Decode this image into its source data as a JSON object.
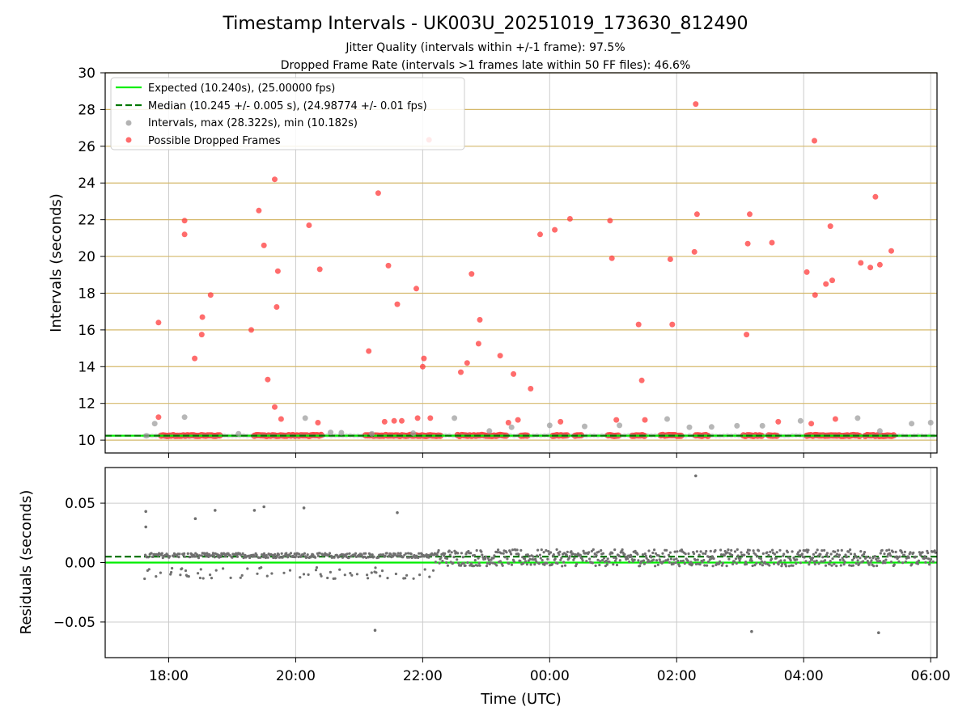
{
  "title": "Timestamp Intervals - UK003U_20251019_173630_812490",
  "subtitle_1": "Jitter Quality (intervals within +/-1 frame): 97.5%",
  "subtitle_2": "Dropped Frame Rate (intervals >1 frames late within 50 FF files): 46.6%",
  "colors": {
    "expected": "#00ee00",
    "median": "#007700",
    "intervals": "#999999",
    "dropped": "#ff3b3b",
    "residuals": "#707070",
    "hline": "#d4b86a",
    "grid": "#cccccc"
  },
  "chart_data": [
    {
      "type": "scatter",
      "name": "intervals",
      "xlabel": "Time (UTC)",
      "ylabel": "Intervals (seconds)",
      "xlim_hours": [
        17.0,
        30.1
      ],
      "ylim": [
        9.3,
        30
      ],
      "x_ticks": [
        {
          "h": 18,
          "label": "18:00"
        },
        {
          "h": 20,
          "label": "20:00"
        },
        {
          "h": 22,
          "label": "22:00"
        },
        {
          "h": 24,
          "label": "00:00"
        },
        {
          "h": 26,
          "label": "02:00"
        },
        {
          "h": 28,
          "label": "04:00"
        },
        {
          "h": 30,
          "label": "06:00"
        }
      ],
      "y_ticks": [
        10,
        12,
        14,
        16,
        18,
        20,
        22,
        24,
        26,
        28,
        30
      ],
      "expected_interval": 10.24,
      "median_interval": 10.245,
      "legend": {
        "position": "upper-left",
        "expected": "Expected (10.240s), (25.00000 fps)",
        "median": "Median (10.245 +/- 0.005 s), (24.98774 +/- 0.01 fps)",
        "intervals": "Intervals, max (28.322s), min (10.182s)",
        "dropped": "Possible Dropped Frames"
      },
      "interval_points": [
        [
          17.65,
          10.24
        ],
        [
          17.78,
          10.9
        ],
        [
          18.25,
          11.25
        ],
        [
          19.1,
          10.35
        ],
        [
          20.15,
          11.2
        ],
        [
          20.72,
          10.4
        ],
        [
          21.2,
          10.35
        ],
        [
          22.5,
          11.2
        ],
        [
          23.4,
          10.7
        ],
        [
          24.0,
          10.8
        ],
        [
          24.55,
          10.75
        ],
        [
          25.1,
          10.8
        ],
        [
          25.85,
          11.15
        ],
        [
          26.2,
          10.7
        ],
        [
          26.55,
          10.72
        ],
        [
          26.95,
          10.78
        ],
        [
          27.35,
          10.78
        ],
        [
          27.95,
          11.05
        ],
        [
          28.85,
          11.2
        ],
        [
          29.7,
          10.9
        ],
        [
          30.0,
          10.95
        ],
        [
          21.85,
          10.38
        ],
        [
          20.55,
          10.42
        ],
        [
          23.05,
          10.5
        ],
        [
          29.2,
          10.5
        ]
      ],
      "dropped_points": [
        [
          17.84,
          16.4
        ],
        [
          17.84,
          11.25
        ],
        [
          18.25,
          21.95
        ],
        [
          18.25,
          21.2
        ],
        [
          18.41,
          14.45
        ],
        [
          18.53,
          16.7
        ],
        [
          18.52,
          15.75
        ],
        [
          18.66,
          17.9
        ],
        [
          19.3,
          16.0
        ],
        [
          19.42,
          22.5
        ],
        [
          19.5,
          20.6
        ],
        [
          19.56,
          13.3
        ],
        [
          19.67,
          24.2
        ],
        [
          19.7,
          17.25
        ],
        [
          19.72,
          19.2
        ],
        [
          19.67,
          11.8
        ],
        [
          19.77,
          11.15
        ],
        [
          20.21,
          21.7
        ],
        [
          20.38,
          19.3
        ],
        [
          20.35,
          10.95
        ],
        [
          21.15,
          14.85
        ],
        [
          21.3,
          23.45
        ],
        [
          21.4,
          11.0
        ],
        [
          21.46,
          19.5
        ],
        [
          21.55,
          11.05
        ],
        [
          21.6,
          17.4
        ],
        [
          21.67,
          11.05
        ],
        [
          21.9,
          18.25
        ],
        [
          21.92,
          11.2
        ],
        [
          22.0,
          14.0
        ],
        [
          22.02,
          14.45
        ],
        [
          22.1,
          26.35
        ],
        [
          22.12,
          11.2
        ],
        [
          22.6,
          13.7
        ],
        [
          22.7,
          14.2
        ],
        [
          22.77,
          19.05
        ],
        [
          22.9,
          16.55
        ],
        [
          22.88,
          15.25
        ],
        [
          23.22,
          14.6
        ],
        [
          23.35,
          10.95
        ],
        [
          23.43,
          13.6
        ],
        [
          23.5,
          11.1
        ],
        [
          23.7,
          12.8
        ],
        [
          23.85,
          21.2
        ],
        [
          24.08,
          21.45
        ],
        [
          24.17,
          11.0
        ],
        [
          24.32,
          22.05
        ],
        [
          24.95,
          21.95
        ],
        [
          24.98,
          19.9
        ],
        [
          25.05,
          11.1
        ],
        [
          25.4,
          16.3
        ],
        [
          25.45,
          13.25
        ],
        [
          25.5,
          11.1
        ],
        [
          25.9,
          19.85
        ],
        [
          25.93,
          16.3
        ],
        [
          26.28,
          20.25
        ],
        [
          26.3,
          28.3
        ],
        [
          26.32,
          22.3
        ],
        [
          27.1,
          15.75
        ],
        [
          27.12,
          20.7
        ],
        [
          27.15,
          22.3
        ],
        [
          27.5,
          20.75
        ],
        [
          27.6,
          11.0
        ],
        [
          28.05,
          19.15
        ],
        [
          28.12,
          10.9
        ],
        [
          28.18,
          17.9
        ],
        [
          28.17,
          26.3
        ],
        [
          28.35,
          18.5
        ],
        [
          28.42,
          21.65
        ],
        [
          28.45,
          18.7
        ],
        [
          28.5,
          11.15
        ],
        [
          28.9,
          19.65
        ],
        [
          29.05,
          19.4
        ],
        [
          29.13,
          23.25
        ],
        [
          29.2,
          19.55
        ],
        [
          29.38,
          20.3
        ]
      ],
      "baseline_clusters": [
        [
          17.88,
          18.83
        ],
        [
          19.35,
          20.43
        ],
        [
          21.1,
          22.3
        ],
        [
          22.55,
          23.33
        ],
        [
          23.55,
          23.65
        ],
        [
          24.05,
          24.28
        ],
        [
          24.4,
          24.52
        ],
        [
          24.92,
          25.08
        ],
        [
          25.3,
          25.5
        ],
        [
          25.75,
          26.1
        ],
        [
          26.3,
          26.5
        ],
        [
          27.05,
          27.35
        ],
        [
          27.45,
          27.6
        ],
        [
          28.05,
          28.9
        ],
        [
          28.97,
          29.42
        ]
      ]
    },
    {
      "type": "scatter",
      "name": "residuals",
      "xlabel": "Time (UTC)",
      "ylabel": "Residuals (seconds)",
      "xlim_hours": [
        17.0,
        30.1
      ],
      "ylim": [
        -0.08,
        0.08
      ],
      "y_ticks": [
        {
          "v": 0.05,
          "label": "0.05"
        },
        {
          "v": 0.0,
          "label": "0.00"
        },
        {
          "v": -0.05,
          "label": "−0.05"
        }
      ],
      "expected_residual": 0.0,
      "median_residual": 0.005,
      "outliers": [
        [
          17.64,
          0.043
        ],
        [
          17.64,
          0.03
        ],
        [
          18.42,
          0.037
        ],
        [
          18.73,
          0.044
        ],
        [
          19.35,
          0.044
        ],
        [
          19.5,
          0.047
        ],
        [
          20.13,
          0.046
        ],
        [
          21.6,
          0.042
        ],
        [
          21.25,
          -0.057
        ],
        [
          26.3,
          0.073
        ],
        [
          27.18,
          -0.058
        ],
        [
          29.18,
          -0.059
        ]
      ]
    }
  ]
}
